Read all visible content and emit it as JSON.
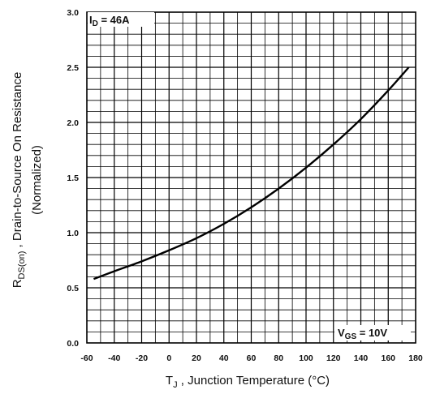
{
  "chart_data": {
    "type": "line",
    "title": "",
    "xlabel": {
      "main": "T",
      "sub": "J",
      "rest": " , Junction Temperature (°C)"
    },
    "ylabel": {
      "main": "R",
      "sub": "DS(on)",
      "rest": " ,  Drain-to-Source On Resistance",
      "line2": "(Normalized)"
    },
    "xlim": [
      -60,
      180
    ],
    "ylim": [
      0.0,
      3.0
    ],
    "xticks": [
      "-60",
      "-40",
      "-20",
      "0",
      "20",
      "40",
      "60",
      "80",
      "100",
      "120",
      "140",
      "160",
      "180"
    ],
    "yticks": [
      "0.0",
      "0.5",
      "1.0",
      "1.5",
      "2.0",
      "2.5",
      "3.0"
    ],
    "grid": true,
    "annotations": [
      {
        "main": "I",
        "sub": "D",
        "rest": " = 46A",
        "position": "top-left"
      },
      {
        "main": "V",
        "sub": "GS",
        "rest": " = 10V",
        "position": "bottom-right"
      }
    ],
    "series": [
      {
        "x": [
          -55,
          -40,
          -20,
          0,
          20,
          40,
          60,
          80,
          100,
          120,
          140,
          160,
          175
        ],
        "y": [
          0.58,
          0.65,
          0.74,
          0.84,
          0.95,
          1.08,
          1.23,
          1.4,
          1.59,
          1.8,
          2.03,
          2.29,
          2.5
        ]
      }
    ]
  }
}
